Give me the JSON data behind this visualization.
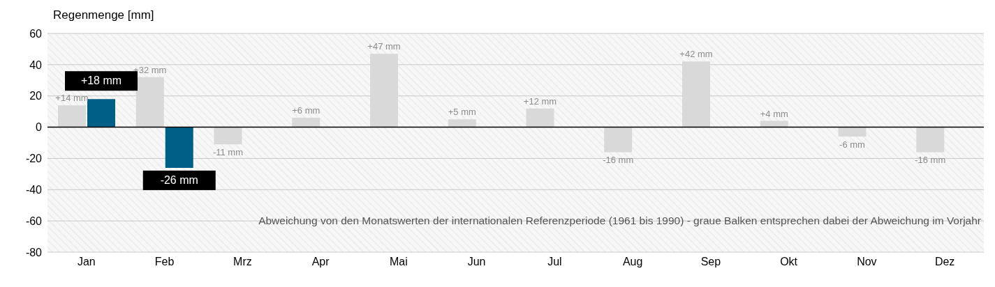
{
  "chart_data": {
    "type": "bar",
    "ylabel": "Regenmenge [mm]",
    "categories": [
      "Jan",
      "Feb",
      "Mrz",
      "Apr",
      "Mai",
      "Jun",
      "Jul",
      "Aug",
      "Sep",
      "Okt",
      "Nov",
      "Dez"
    ],
    "series": [
      {
        "color": "#d9d9d9",
        "values": [
          14,
          32,
          -11,
          6,
          47,
          5,
          12,
          -16,
          42,
          4,
          -6,
          -16
        ],
        "value_labels": [
          "+14 mm",
          "+32 mm",
          "-11 mm",
          "+6 mm",
          "+47 mm",
          "+5 mm",
          "+12 mm",
          "-16 mm",
          "+42 mm",
          "+4 mm",
          "-6 mm",
          "-16 mm"
        ]
      },
      {
        "color": "#005f87",
        "values": [
          18,
          -26,
          null,
          null,
          null,
          null,
          null,
          null,
          null,
          null,
          null,
          null
        ],
        "value_labels": [
          "+18 mm",
          "-26 mm",
          null,
          null,
          null,
          null,
          null,
          null,
          null,
          null,
          null,
          null
        ]
      }
    ],
    "ylim": [
      -80,
      60
    ],
    "yticks": [
      -80,
      -60,
      -40,
      -20,
      0,
      20,
      40,
      60
    ],
    "grid": "y",
    "legend": false,
    "annotations": [
      "Abweichung von den Monatswerten der internationalen Referenzperiode (1961 bis 1990) - graue  Balken entsprechen dabei der Abweichung im Vorjahr"
    ]
  }
}
